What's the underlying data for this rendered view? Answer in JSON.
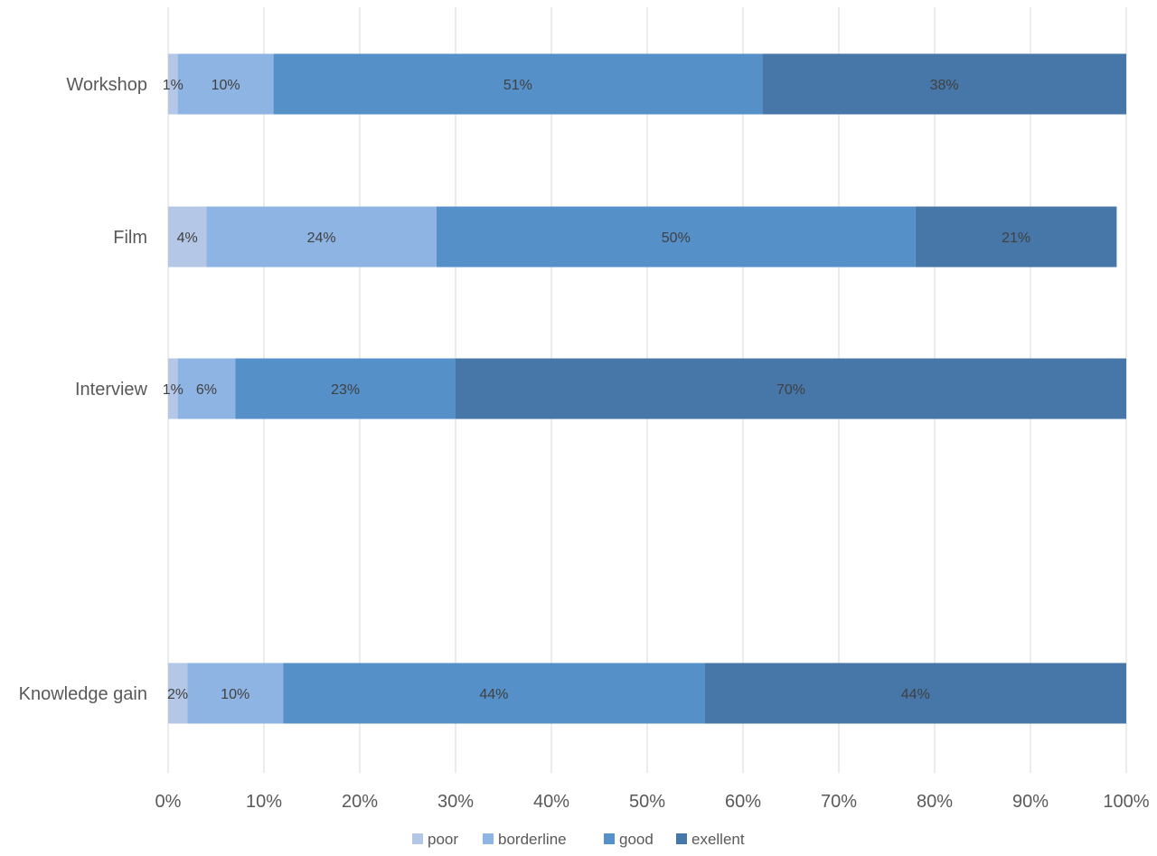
{
  "chart_data": {
    "type": "bar",
    "orientation": "horizontal",
    "stacked": true,
    "categories": [
      "Workshop",
      "Film",
      "Interview",
      "Knowledge gain"
    ],
    "series": [
      {
        "name": "poor",
        "color": "#b4c7e7",
        "values": [
          1,
          4,
          1,
          2
        ],
        "labels": [
          "1%",
          "4%",
          "1%",
          "2%"
        ]
      },
      {
        "name": "borderline",
        "color": "#8eb4e3",
        "values": [
          10,
          24,
          6,
          10
        ],
        "labels": [
          "10%",
          "24%",
          "6%",
          "10%"
        ]
      },
      {
        "name": "good",
        "color": "#5590c8",
        "values": [
          51,
          50,
          23,
          44
        ],
        "labels": [
          "51%",
          "50%",
          "23%",
          "44%"
        ]
      },
      {
        "name": "exellent",
        "color": "#4677a8",
        "values": [
          38,
          21,
          70,
          44
        ],
        "labels": [
          "38%",
          "21%",
          "70%",
          "44%"
        ]
      }
    ],
    "xlim": [
      0,
      100
    ],
    "x_ticks": [
      "0%",
      "10%",
      "20%",
      "30%",
      "40%",
      "50%",
      "60%",
      "70%",
      "80%",
      "90%",
      "100%"
    ],
    "grid": true,
    "legend_position": "bottom",
    "title": "",
    "xlabel": "",
    "ylabel": ""
  }
}
